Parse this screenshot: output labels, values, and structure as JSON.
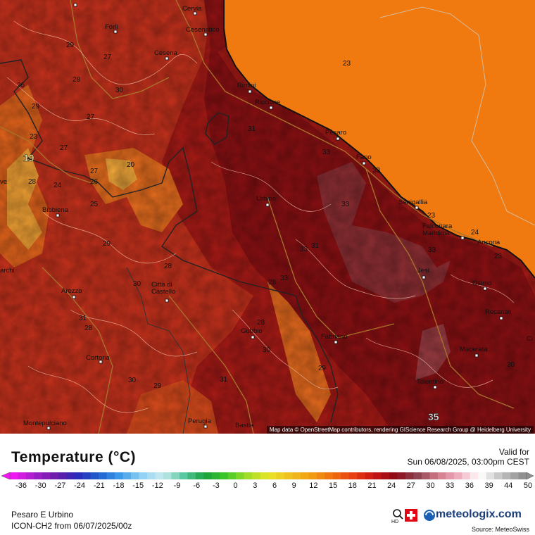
{
  "map": {
    "cities": [
      {
        "name": "Cervia"
      },
      {
        "name": "Forlì"
      },
      {
        "name": "Cesenatico"
      },
      {
        "name": "Cesena"
      },
      {
        "name": "Rimini"
      },
      {
        "name": "Riccione"
      },
      {
        "name": "Pesaro"
      },
      {
        "name": "Fano"
      },
      {
        "name": "Urbino"
      },
      {
        "name": "Senigallia"
      },
      {
        "name": "Falconara\nMarittima"
      },
      {
        "name": "Ancona"
      },
      {
        "name": "Bibbiena"
      },
      {
        "name": "Jesi"
      },
      {
        "name": "Osimo"
      },
      {
        "name": "Arezzo"
      },
      {
        "name": "Città di\nCastello"
      },
      {
        "name": "Recanati"
      },
      {
        "name": "Gubbio"
      },
      {
        "name": "Fabriano"
      },
      {
        "name": "Macerata"
      },
      {
        "name": "Cortona"
      },
      {
        "name": "Tolentino"
      },
      {
        "name": "Montepulciano"
      },
      {
        "name": "Perugia"
      },
      {
        "name": "Bastia"
      },
      {
        "name": "archi"
      },
      {
        "name": "ve"
      },
      {
        "name": "Ci"
      }
    ],
    "temperature_labels": [
      {
        "value": "23"
      },
      {
        "value": "29"
      },
      {
        "value": "27"
      },
      {
        "value": "26"
      },
      {
        "value": "28"
      },
      {
        "value": "30"
      },
      {
        "value": "29"
      },
      {
        "value": "27"
      },
      {
        "value": "31"
      },
      {
        "value": "23"
      },
      {
        "value": "27"
      },
      {
        "value": "20"
      },
      {
        "value": "27"
      },
      {
        "value": "26"
      },
      {
        "value": "28"
      },
      {
        "value": "24"
      },
      {
        "value": "25"
      },
      {
        "value": "33"
      },
      {
        "value": "33"
      },
      {
        "value": "33"
      },
      {
        "value": "23"
      },
      {
        "value": "24"
      },
      {
        "value": "33"
      },
      {
        "value": "29"
      },
      {
        "value": "28"
      },
      {
        "value": "30"
      },
      {
        "value": "33"
      },
      {
        "value": "31"
      },
      {
        "value": "33"
      },
      {
        "value": "28"
      },
      {
        "value": "28"
      },
      {
        "value": "30"
      },
      {
        "value": "28"
      },
      {
        "value": "31"
      },
      {
        "value": "29"
      },
      {
        "value": "30"
      },
      {
        "value": "29"
      },
      {
        "value": "31"
      },
      {
        "value": "30"
      },
      {
        "value": "23"
      }
    ],
    "highlight_min": "19",
    "highlight_max": "35",
    "attribution": "Map data © OpenStreetMap contributors, rendering GIScience Research Group @ Heidelberg University",
    "colors": {
      "sea": "#f07a10",
      "land_hot": "#8b0f12",
      "land_warm": "#c8321c",
      "land_mild": "#e8741e",
      "hill_cool": "#f2a33a",
      "coast": "#111111"
    }
  },
  "legend": {
    "title": "Temperature (°C)",
    "valid_label": "Valid for",
    "valid_time": "Sun 06/08/2025, 03:00pm CEST",
    "ticks": [
      "-36",
      "-30",
      "-27",
      "-24",
      "-21",
      "-18",
      "-15",
      "-12",
      "-9",
      "-6",
      "-3",
      "0",
      "3",
      "6",
      "9",
      "12",
      "15",
      "18",
      "21",
      "24",
      "27",
      "30",
      "33",
      "36",
      "39",
      "44",
      "50"
    ],
    "region": "Pesaro E Urbino",
    "model": "ICON-CH2 from  06/07/2025/00z",
    "brand": "meteologix.com",
    "hd_label": "HD",
    "source": "Source: MeteoSwiss"
  }
}
